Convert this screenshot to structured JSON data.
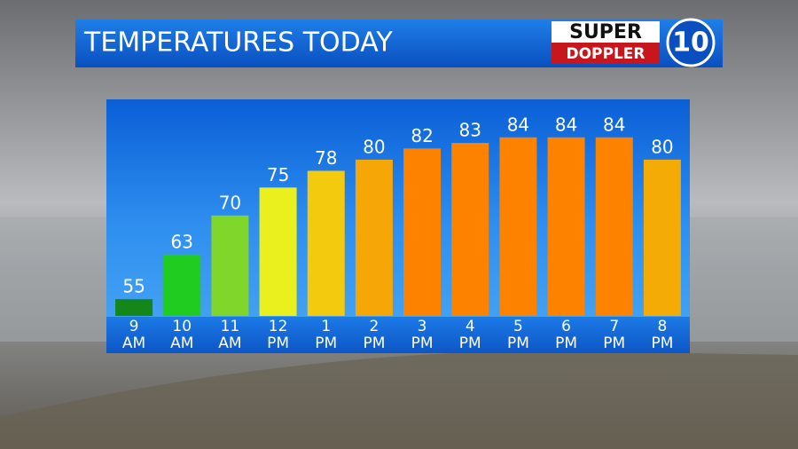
{
  "chart_data": {
    "type": "bar",
    "title": "TEMPERATURES TODAY",
    "logo": {
      "top": "SUPER",
      "bottom": "DOPPLER",
      "number": "10"
    },
    "categories": [
      "9 AM",
      "10 AM",
      "11 AM",
      "12 PM",
      "1 PM",
      "2 PM",
      "3 PM",
      "4 PM",
      "5 PM",
      "6 PM",
      "7 PM",
      "8 PM"
    ],
    "values": [
      55,
      63,
      70,
      75,
      78,
      80,
      82,
      83,
      84,
      84,
      84,
      80
    ],
    "colors": [
      "#14861a",
      "#1fcc1f",
      "#80d62a",
      "#eaf01e",
      "#f3ca0e",
      "#f6a606",
      "#fd8200",
      "#fd8200",
      "#fd8200",
      "#fd8200",
      "#fd8200",
      "#f4ab05"
    ],
    "ylim": [
      52,
      90.8
    ]
  }
}
